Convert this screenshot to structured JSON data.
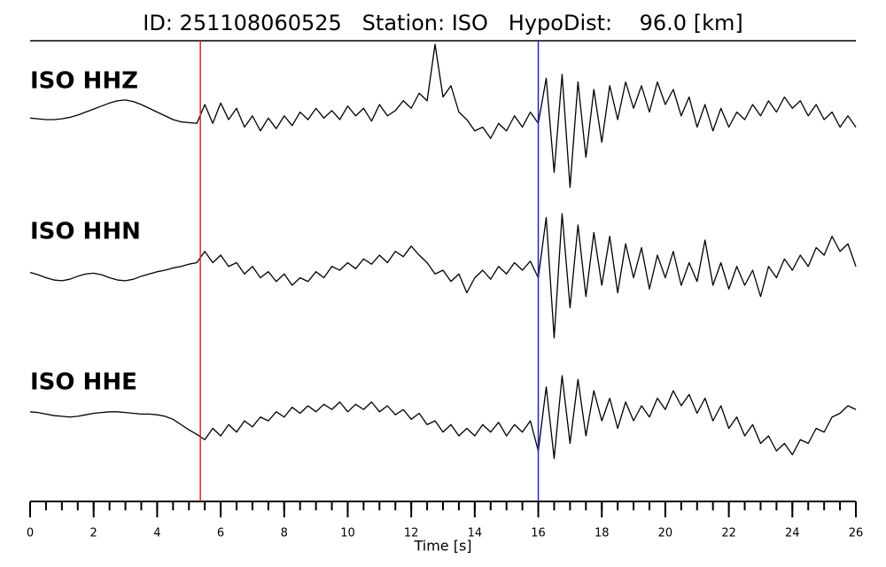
{
  "chart_data": {
    "type": "line",
    "title": "ID: 251108060525   Station: ISO   HypoDist:    96.0 [km]",
    "xlabel": "Time [s]",
    "xlim": [
      0,
      26
    ],
    "xticks": [
      0,
      2,
      4,
      6,
      8,
      10,
      12,
      14,
      16,
      18,
      20,
      22,
      24,
      26
    ],
    "xminor": [
      0,
      0.5,
      1,
      1.5,
      2,
      2.5,
      3,
      3.5,
      4,
      4.5,
      5,
      5.5,
      6,
      6.5,
      7,
      7.5,
      8,
      8.5,
      9,
      9.5,
      10,
      10.5,
      11,
      11.5,
      12,
      12.5,
      13,
      13.5,
      14,
      14.5,
      15,
      15.5,
      16,
      16.5,
      17,
      17.5,
      18,
      18.5,
      19,
      19.5,
      20,
      20.5,
      21,
      21.5,
      22,
      22.5,
      23,
      23.5,
      24,
      24.5,
      25,
      25.5,
      26
    ],
    "ylim": [
      -1,
      1
    ],
    "label_color": "#4c9a00",
    "markers": [
      {
        "x": 5.36,
        "color": "#e02020"
      },
      {
        "x": 16.0,
        "color": "#2020c0"
      }
    ],
    "x": [
      0,
      0.25,
      0.5,
      0.75,
      1,
      1.25,
      1.5,
      1.75,
      2,
      2.25,
      2.5,
      2.75,
      3,
      3.25,
      3.5,
      3.75,
      4,
      4.25,
      4.5,
      4.75,
      5,
      5.25,
      5.5,
      5.75,
      6,
      6.25,
      6.5,
      6.75,
      7,
      7.25,
      7.5,
      7.75,
      8,
      8.25,
      8.5,
      8.75,
      9,
      9.25,
      9.5,
      9.75,
      10,
      10.25,
      10.5,
      10.75,
      11,
      11.25,
      11.5,
      11.75,
      12,
      12.25,
      12.5,
      12.75,
      13,
      13.25,
      13.5,
      13.75,
      14,
      14.25,
      14.5,
      14.75,
      15,
      15.25,
      15.5,
      15.75,
      16,
      16.25,
      16.5,
      16.75,
      17,
      17.25,
      17.5,
      17.75,
      18,
      18.25,
      18.5,
      18.75,
      19,
      19.25,
      19.5,
      19.75,
      20,
      20.25,
      20.5,
      20.75,
      21,
      21.25,
      21.5,
      21.75,
      22,
      22.25,
      22.5,
      22.75,
      23,
      23.25,
      23.5,
      23.75,
      24,
      24.25,
      24.5,
      24.75,
      25,
      25.25,
      25.5,
      25.75,
      26
    ],
    "series": [
      {
        "name": "ISO HHZ",
        "color": "#000000",
        "values": [
          0.02,
          0.01,
          0.0,
          0.0,
          0.01,
          0.03,
          0.06,
          0.1,
          0.14,
          0.18,
          0.22,
          0.25,
          0.26,
          0.24,
          0.2,
          0.15,
          0.1,
          0.05,
          0.0,
          -0.03,
          -0.04,
          -0.05,
          0.2,
          -0.05,
          0.22,
          0.0,
          0.15,
          -0.1,
          0.05,
          -0.15,
          0.02,
          -0.12,
          0.05,
          -0.08,
          0.1,
          0.0,
          0.15,
          0.02,
          0.12,
          0.0,
          0.18,
          0.05,
          0.15,
          -0.02,
          0.2,
          0.05,
          0.12,
          0.25,
          0.15,
          0.35,
          0.25,
          1.0,
          0.3,
          0.45,
          0.1,
          0.0,
          -0.15,
          -0.1,
          -0.25,
          -0.05,
          -0.15,
          0.05,
          -0.1,
          0.1,
          -0.05,
          0.55,
          -0.7,
          0.6,
          -0.9,
          0.5,
          -0.5,
          0.4,
          -0.3,
          0.45,
          0.0,
          0.5,
          0.15,
          0.45,
          0.1,
          0.5,
          0.2,
          0.4,
          0.05,
          0.3,
          -0.1,
          0.2,
          -0.15,
          0.15,
          -0.1,
          0.1,
          0.0,
          0.2,
          0.05,
          0.25,
          0.1,
          0.3,
          0.15,
          0.25,
          0.05,
          0.2,
          0.0,
          0.1,
          -0.1,
          0.05,
          -0.1
        ]
      },
      {
        "name": "ISO HHN",
        "color": "#000000",
        "values": [
          -0.03,
          -0.06,
          -0.1,
          -0.13,
          -0.14,
          -0.12,
          -0.08,
          -0.05,
          -0.04,
          -0.06,
          -0.1,
          -0.13,
          -0.14,
          -0.12,
          -0.08,
          -0.05,
          -0.02,
          0.0,
          0.03,
          0.05,
          0.08,
          0.1,
          0.25,
          0.1,
          0.2,
          0.05,
          0.1,
          -0.05,
          0.05,
          -0.1,
          -0.02,
          -0.15,
          -0.05,
          -0.2,
          -0.1,
          -0.15,
          -0.02,
          -0.1,
          0.05,
          0.0,
          0.1,
          0.02,
          0.15,
          0.08,
          0.2,
          0.1,
          0.25,
          0.18,
          0.32,
          0.2,
          0.1,
          -0.05,
          0.0,
          -0.15,
          -0.05,
          -0.3,
          -0.1,
          0.0,
          -0.12,
          0.05,
          -0.05,
          0.1,
          0.0,
          0.12,
          -0.1,
          0.7,
          -0.9,
          0.75,
          -0.5,
          0.6,
          -0.35,
          0.5,
          -0.2,
          0.45,
          -0.3,
          0.35,
          -0.1,
          0.3,
          -0.25,
          0.2,
          -0.1,
          0.25,
          -0.2,
          0.1,
          -0.15,
          0.4,
          -0.2,
          0.1,
          -0.25,
          0.05,
          -0.2,
          0.0,
          -0.35,
          0.05,
          -0.1,
          0.15,
          0.0,
          0.2,
          0.05,
          0.3,
          0.2,
          0.45,
          0.25,
          0.35,
          0.05
        ]
      },
      {
        "name": "ISO HHE",
        "color": "#000000",
        "values": [
          0.12,
          0.11,
          0.09,
          0.07,
          0.06,
          0.05,
          0.06,
          0.08,
          0.1,
          0.11,
          0.12,
          0.12,
          0.11,
          0.1,
          0.09,
          0.09,
          0.08,
          0.06,
          0.02,
          -0.05,
          -0.12,
          -0.18,
          -0.25,
          -0.1,
          -0.2,
          -0.05,
          -0.15,
          0.0,
          -0.08,
          0.05,
          0.0,
          0.12,
          0.05,
          0.18,
          0.1,
          0.2,
          0.12,
          0.22,
          0.15,
          0.25,
          0.12,
          0.22,
          0.15,
          0.25,
          0.12,
          0.2,
          0.08,
          0.15,
          0.02,
          0.1,
          -0.05,
          0.0,
          -0.15,
          -0.05,
          -0.2,
          -0.1,
          -0.2,
          -0.05,
          -0.15,
          -0.02,
          -0.2,
          -0.05,
          -0.15,
          0.0,
          -0.4,
          0.45,
          -0.5,
          0.6,
          -0.3,
          0.55,
          -0.2,
          0.4,
          0.0,
          0.3,
          -0.1,
          0.25,
          0.0,
          0.2,
          0.05,
          0.3,
          0.15,
          0.4,
          0.2,
          0.35,
          0.1,
          0.3,
          0.0,
          0.2,
          -0.1,
          0.05,
          -0.2,
          -0.05,
          -0.3,
          -0.2,
          -0.4,
          -0.3,
          -0.45,
          -0.25,
          -0.3,
          -0.1,
          -0.15,
          0.05,
          0.1,
          0.2,
          0.15
        ]
      }
    ]
  }
}
